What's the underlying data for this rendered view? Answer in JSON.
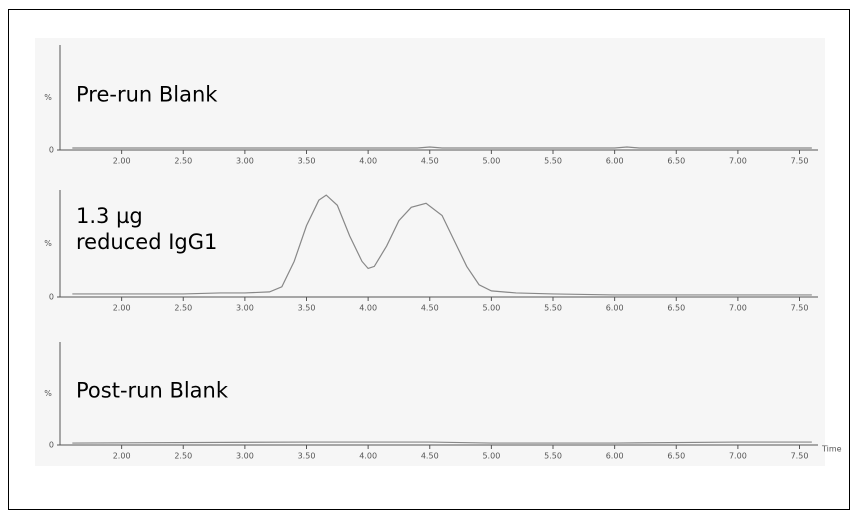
{
  "chart_data": [
    {
      "type": "line",
      "annotation": [
        "Pre-run Blank"
      ],
      "y_label": "%",
      "x": [
        1.6,
        2.5,
        3.0,
        3.5,
        4.0,
        4.4,
        4.5,
        4.6,
        5.0,
        6.0,
        6.1,
        6.2,
        7.0,
        7.6
      ],
      "series": [
        {
          "color": "#888888",
          "values": [
            2,
            2,
            2,
            2,
            2,
            2,
            3,
            2,
            2,
            2,
            3,
            2,
            2,
            2
          ]
        }
      ],
      "xlim": [
        1.5,
        7.65
      ],
      "ylim": [
        0,
        105
      ],
      "xticks": [
        {
          "value": 2.0,
          "label": "2.00"
        },
        {
          "value": 2.5,
          "label": "2.50"
        },
        {
          "value": 3.0,
          "label": "3.00"
        },
        {
          "value": 3.5,
          "label": "3.50"
        },
        {
          "value": 4.0,
          "label": "4.00"
        },
        {
          "value": 4.5,
          "label": "4.50"
        },
        {
          "value": 5.0,
          "label": "5.00"
        },
        {
          "value": 5.5,
          "label": "5.50"
        },
        {
          "value": 6.0,
          "label": "6.00"
        },
        {
          "value": 6.5,
          "label": "6.50"
        },
        {
          "value": 7.0,
          "label": "7.00"
        },
        {
          "value": 7.5,
          "label": "7.50"
        }
      ],
      "yticks": [
        0
      ]
    },
    {
      "type": "line",
      "annotation": [
        "1.3 µg",
        "reduced IgG1"
      ],
      "y_label": "%",
      "x": [
        1.6,
        2.0,
        2.5,
        2.8,
        3.0,
        3.2,
        3.3,
        3.4,
        3.5,
        3.6,
        3.66,
        3.75,
        3.85,
        3.95,
        4.0,
        4.05,
        4.15,
        4.25,
        4.35,
        4.47,
        4.6,
        4.7,
        4.8,
        4.9,
        5.0,
        5.2,
        5.5,
        6.0,
        6.5,
        7.0,
        7.6
      ],
      "series": [
        {
          "color": "#888888",
          "values": [
            3,
            3,
            3,
            4,
            4,
            5,
            10,
            35,
            70,
            95,
            100,
            90,
            60,
            35,
            28,
            30,
            50,
            75,
            88,
            92,
            80,
            55,
            30,
            12,
            6,
            4,
            3,
            2,
            2,
            2,
            2
          ]
        }
      ],
      "xlim": [
        1.5,
        7.65
      ],
      "ylim": [
        0,
        105
      ],
      "xticks": [
        {
          "value": 2.0,
          "label": "2.00"
        },
        {
          "value": 2.5,
          "label": "2.50"
        },
        {
          "value": 3.0,
          "label": "3.00"
        },
        {
          "value": 3.5,
          "label": "3.50"
        },
        {
          "value": 4.0,
          "label": "4.00"
        },
        {
          "value": 4.5,
          "label": "4.50"
        },
        {
          "value": 5.0,
          "label": "5.00"
        },
        {
          "value": 5.5,
          "label": "5.50"
        },
        {
          "value": 6.0,
          "label": "6.00"
        },
        {
          "value": 6.5,
          "label": "6.50"
        },
        {
          "value": 7.0,
          "label": "7.00"
        },
        {
          "value": 7.5,
          "label": "7.50"
        }
      ],
      "yticks": [
        0
      ]
    },
    {
      "type": "line",
      "annotation": [
        "Post-run Blank"
      ],
      "y_label": "%",
      "x_label": "Time",
      "x": [
        1.6,
        3.5,
        4.0,
        4.5,
        5.0,
        6.0,
        7.0,
        7.6
      ],
      "series": [
        {
          "color": "#888888",
          "values": [
            2,
            3,
            3,
            3,
            2,
            2,
            3,
            3
          ]
        }
      ],
      "xlim": [
        1.5,
        7.65
      ],
      "ylim": [
        0,
        105
      ],
      "xticks": [
        {
          "value": 2.0,
          "label": "2.00"
        },
        {
          "value": 2.5,
          "label": "2.50"
        },
        {
          "value": 3.0,
          "label": "3.00"
        },
        {
          "value": 3.5,
          "label": "3.50"
        },
        {
          "value": 4.0,
          "label": "4.00"
        },
        {
          "value": 4.5,
          "label": "4.50"
        },
        {
          "value": 5.0,
          "label": "5.00"
        },
        {
          "value": 5.5,
          "label": "5.50"
        },
        {
          "value": 6.0,
          "label": "6.00"
        },
        {
          "value": 6.5,
          "label": "6.50"
        },
        {
          "value": 7.0,
          "label": "7.00"
        },
        {
          "value": 7.5,
          "label": "7.50"
        }
      ],
      "yticks": [
        0
      ]
    }
  ]
}
